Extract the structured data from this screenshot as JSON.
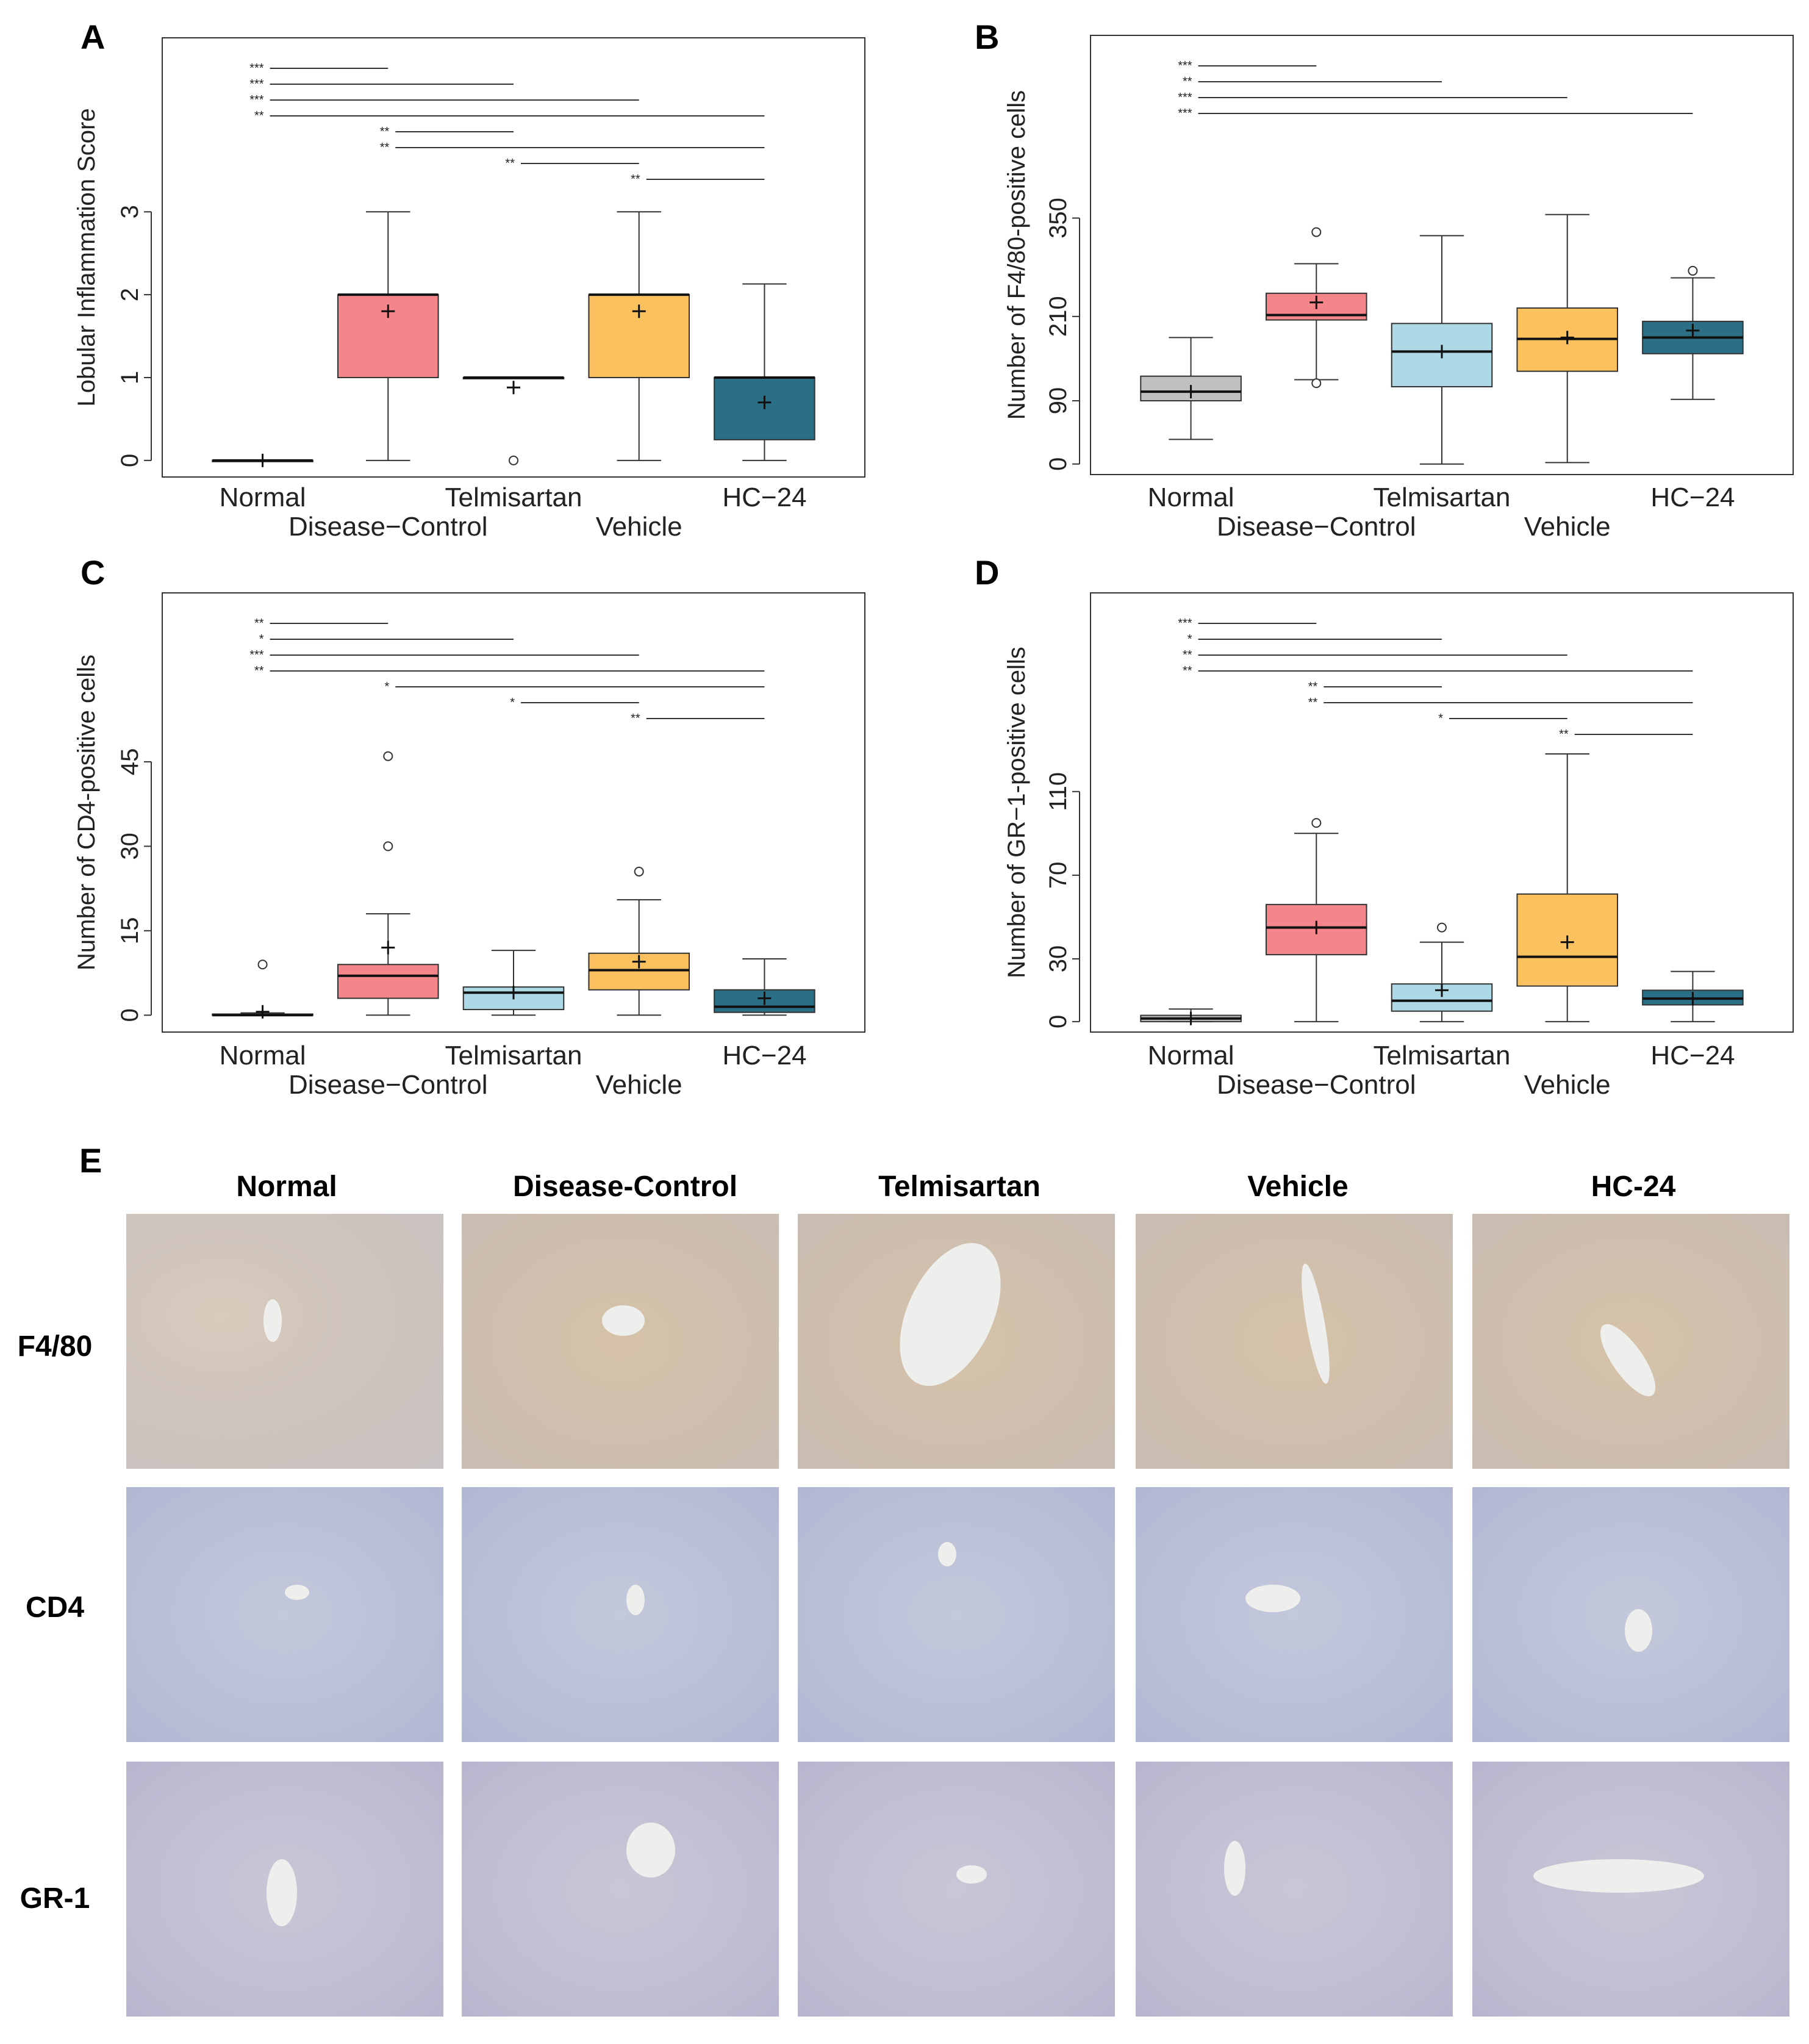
{
  "figure_labels": {
    "a": "A",
    "b": "B",
    "c": "C",
    "d": "D",
    "e": "E"
  },
  "colors": {
    "Normal": "#c0c0c0",
    "Disease-Control": "#f4858a",
    "Telmisartan": "#add8e6",
    "Vehicle": "#fbc15e",
    "HC-24": "#2a6f86"
  },
  "chart_data": [
    {
      "panel": "A",
      "type": "box",
      "ylabel": "Lobular Inflammation Score",
      "yticks": [
        0,
        1,
        2,
        3
      ],
      "ylim": [
        -0.2,
        5.1
      ],
      "categories": [
        "Normal",
        "Disease−Control",
        "Telmisartan",
        "Vehicle",
        "HC−24"
      ],
      "boxes": [
        {
          "min": 0,
          "q1": 0,
          "median": 0,
          "q3": 0,
          "max": 0,
          "mean": 0,
          "outliers": []
        },
        {
          "min": 0,
          "q1": 1,
          "median": 2,
          "q3": 2,
          "max": 3,
          "mean": 1.8,
          "outliers": []
        },
        {
          "min": 1,
          "q1": 1,
          "median": 1,
          "q3": 1,
          "max": 1,
          "mean": 0.88,
          "outliers": [
            0
          ]
        },
        {
          "min": 0,
          "q1": 1,
          "median": 2,
          "q3": 2,
          "max": 3,
          "mean": 1.8,
          "outliers": []
        },
        {
          "min": 0,
          "q1": 0.25,
          "median": 1,
          "q3": 1,
          "max": 2.13,
          "mean": 0.7,
          "outliers": []
        }
      ],
      "comparisons": [
        {
          "from": 0,
          "to": 1,
          "label": "***"
        },
        {
          "from": 0,
          "to": 2,
          "label": "***"
        },
        {
          "from": 0,
          "to": 3,
          "label": "***"
        },
        {
          "from": 0,
          "to": 4,
          "label": "**"
        },
        {
          "from": 1,
          "to": 2,
          "label": "**"
        },
        {
          "from": 1,
          "to": 4,
          "label": "**"
        },
        {
          "from": 2,
          "to": 3,
          "label": "**"
        },
        {
          "from": 3,
          "to": 4,
          "label": "**"
        }
      ]
    },
    {
      "panel": "B",
      "type": "box",
      "ylabel": "Number of F4/80-positive cells",
      "yticks": [
        0,
        90,
        210,
        350
      ],
      "ylim": [
        -15,
        610
      ],
      "categories": [
        "Normal",
        "Disease−Control",
        "Telmisartan",
        "Vehicle",
        "HC−24"
      ],
      "boxes": [
        {
          "min": 35,
          "q1": 90,
          "median": 103,
          "q3": 125,
          "max": 180,
          "mean": 103,
          "outliers": []
        },
        {
          "min": 120,
          "q1": 205,
          "median": 212,
          "q3": 243,
          "max": 285,
          "mean": 230,
          "outliers": [
            330,
            115
          ]
        },
        {
          "min": 0,
          "q1": 110,
          "median": 160,
          "q3": 200,
          "max": 325,
          "mean": 160,
          "outliers": []
        },
        {
          "min": 2,
          "q1": 132,
          "median": 178,
          "q3": 222,
          "max": 355,
          "mean": 180,
          "outliers": []
        },
        {
          "min": 92,
          "q1": 157,
          "median": 180,
          "q3": 203,
          "max": 265,
          "mean": 190,
          "outliers": [
            275
          ]
        }
      ],
      "comparisons": [
        {
          "from": 0,
          "to": 1,
          "label": "***"
        },
        {
          "from": 0,
          "to": 2,
          "label": "**"
        },
        {
          "from": 0,
          "to": 3,
          "label": "***"
        },
        {
          "from": 0,
          "to": 4,
          "label": "***"
        }
      ]
    },
    {
      "panel": "C",
      "type": "box",
      "ylabel": "Number of CD4-positive cells",
      "yticks": [
        0,
        15,
        30,
        45
      ],
      "ylim": [
        -3,
        75
      ],
      "categories": [
        "Normal",
        "Disease−Control",
        "Telmisartan",
        "Vehicle",
        "HC−24"
      ],
      "boxes": [
        {
          "min": 0,
          "q1": 0,
          "median": 0,
          "q3": 0.2,
          "max": 0.4,
          "mean": 0.6,
          "outliers": [
            9
          ]
        },
        {
          "min": 0,
          "q1": 3,
          "median": 7,
          "q3": 9,
          "max": 18,
          "mean": 12,
          "outliers": [
            46,
            30
          ]
        },
        {
          "min": 0,
          "q1": 1,
          "median": 4,
          "q3": 5,
          "max": 11.5,
          "mean": 4,
          "outliers": []
        },
        {
          "min": 0,
          "q1": 4.5,
          "median": 8,
          "q3": 11,
          "max": 20.5,
          "mean": 9.5,
          "outliers": [
            25.5
          ]
        },
        {
          "min": 0,
          "q1": 0.5,
          "median": 1.5,
          "q3": 4.5,
          "max": 10,
          "mean": 3,
          "outliers": []
        }
      ],
      "comparisons": [
        {
          "from": 0,
          "to": 1,
          "label": "**"
        },
        {
          "from": 0,
          "to": 2,
          "label": "*"
        },
        {
          "from": 0,
          "to": 3,
          "label": "***"
        },
        {
          "from": 0,
          "to": 4,
          "label": "**"
        },
        {
          "from": 1,
          "to": 4,
          "label": "*"
        },
        {
          "from": 2,
          "to": 3,
          "label": "*"
        },
        {
          "from": 3,
          "to": 4,
          "label": "**"
        }
      ]
    },
    {
      "panel": "D",
      "type": "box",
      "ylabel": "Number of GR−1-positive cells",
      "yticks": [
        0,
        30,
        70,
        110
      ],
      "ylim": [
        -5,
        205
      ],
      "categories": [
        "Normal",
        "Disease−Control",
        "Telmisartan",
        "Vehicle",
        "HC−24"
      ],
      "boxes": [
        {
          "min": 0,
          "q1": 0,
          "median": 1.5,
          "q3": 3,
          "max": 6,
          "mean": 1.5,
          "outliers": []
        },
        {
          "min": 0,
          "q1": 32,
          "median": 45,
          "q3": 56,
          "max": 90,
          "mean": 45,
          "outliers": [
            95
          ]
        },
        {
          "min": 0,
          "q1": 5,
          "median": 10,
          "q3": 18,
          "max": 38,
          "mean": 15,
          "outliers": [
            45
          ]
        },
        {
          "min": 0,
          "q1": 17,
          "median": 31,
          "q3": 61,
          "max": 128,
          "mean": 38,
          "outliers": []
        },
        {
          "min": 0,
          "q1": 8,
          "median": 11,
          "q3": 15,
          "max": 24,
          "mean": 11,
          "outliers": []
        }
      ],
      "comparisons": [
        {
          "from": 0,
          "to": 1,
          "label": "***"
        },
        {
          "from": 0,
          "to": 2,
          "label": "*"
        },
        {
          "from": 0,
          "to": 3,
          "label": "**"
        },
        {
          "from": 0,
          "to": 4,
          "label": "**"
        },
        {
          "from": 1,
          "to": 2,
          "label": "**"
        },
        {
          "from": 1,
          "to": 4,
          "label": "**"
        },
        {
          "from": 2,
          "to": 3,
          "label": "*"
        },
        {
          "from": 3,
          "to": 4,
          "label": "**"
        }
      ]
    }
  ],
  "histology": {
    "columns": [
      "Normal",
      "Disease-Control",
      "Telmisartan",
      "Vehicle",
      "HC-24"
    ],
    "rows": [
      "F4/80",
      "CD4",
      "GR-1"
    ]
  }
}
